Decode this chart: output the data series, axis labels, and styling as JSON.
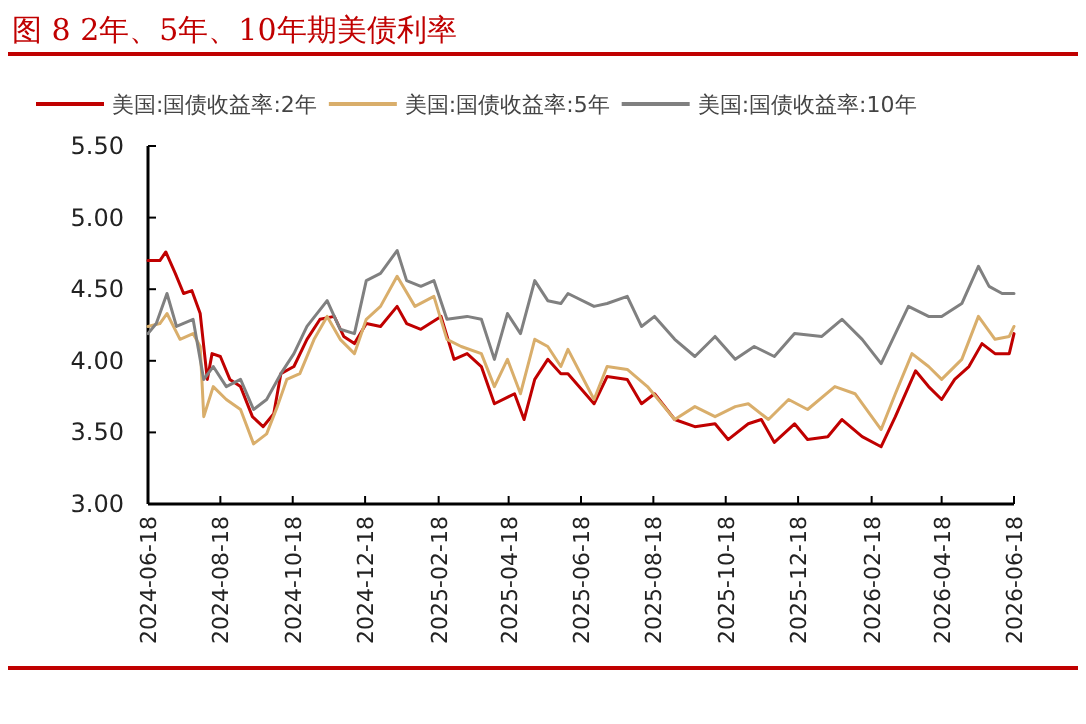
{
  "chart_data": {
    "type": "line",
    "title": "图 8 2年、5年、10年期美债利率",
    "legend": "top",
    "grid": false,
    "line_style": "solid",
    "marker": "none",
    "xlim": [
      "2024-06-18",
      "2026-06-18"
    ],
    "xticks": [
      "2024-06-18",
      "2024-08-18",
      "2024-10-18",
      "2024-12-18",
      "2025-02-18",
      "2025-04-18",
      "2025-06-18",
      "2025-08-18",
      "2025-10-18",
      "2025-12-18",
      "2026-02-18",
      "2026-04-18",
      "2026-06-18"
    ],
    "ylim": [
      3.0,
      5.5
    ],
    "yticks": [
      {
        "value": 3.0,
        "label": "3.00"
      },
      {
        "value": 3.5,
        "label": "3.50"
      },
      {
        "value": 4.0,
        "label": "4.00"
      },
      {
        "value": 4.5,
        "label": "4.50"
      },
      {
        "value": 5.0,
        "label": "5.00"
      },
      {
        "value": 5.5,
        "label": "5.50"
      }
    ],
    "series": [
      {
        "name": "美国:国债收益率:2年",
        "color": "#c00000",
        "x": [
          "2024-06-18",
          "2024-06-28",
          "2024-07-03",
          "2024-07-11",
          "2024-07-18",
          "2024-07-25",
          "2024-08-01",
          "2024-08-07",
          "2024-08-11",
          "2024-08-18",
          "2024-08-26",
          "2024-09-04",
          "2024-09-14",
          "2024-09-23",
          "2024-10-02",
          "2024-10-08",
          "2024-10-19",
          "2024-10-30",
          "2024-11-10",
          "2024-11-22",
          "2024-11-30",
          "2024-12-09",
          "2024-12-19",
          "2024-12-31",
          "2025-01-14",
          "2025-01-22",
          "2025-02-03",
          "2025-02-20",
          "2025-03-03",
          "2025-03-14",
          "2025-03-26",
          "2025-04-06",
          "2025-04-23",
          "2025-05-01",
          "2025-05-10",
          "2025-05-21",
          "2025-06-01",
          "2025-06-07",
          "2025-06-29",
          "2025-07-10",
          "2025-07-27",
          "2025-08-08",
          "2025-08-19",
          "2025-09-05",
          "2025-09-22",
          "2025-10-09",
          "2025-10-20",
          "2025-11-06",
          "2025-11-17",
          "2025-11-28",
          "2025-12-15",
          "2025-12-26",
          "2026-01-12",
          "2026-01-24",
          "2026-02-10",
          "2026-02-26",
          "2026-03-10",
          "2026-03-27",
          "2026-04-07",
          "2026-04-18",
          "2026-04-29",
          "2026-05-11",
          "2026-05-22",
          "2026-06-02",
          "2026-06-14",
          "2026-06-18"
        ],
        "values": [
          4.7,
          4.7,
          4.76,
          4.61,
          4.47,
          4.49,
          4.33,
          3.87,
          4.05,
          4.03,
          3.87,
          3.82,
          3.61,
          3.54,
          3.63,
          3.91,
          3.96,
          4.15,
          4.29,
          4.31,
          4.17,
          4.12,
          4.26,
          4.24,
          4.38,
          4.26,
          4.22,
          4.31,
          4.01,
          4.05,
          3.96,
          3.7,
          3.77,
          3.59,
          3.87,
          4.01,
          3.91,
          3.91,
          3.7,
          3.89,
          3.87,
          3.7,
          3.77,
          3.59,
          3.54,
          3.56,
          3.45,
          3.56,
          3.59,
          3.43,
          3.56,
          3.45,
          3.47,
          3.59,
          3.47,
          3.4,
          3.61,
          3.93,
          3.82,
          3.73,
          3.87,
          3.96,
          4.12,
          4.05,
          4.05,
          4.19
        ]
      },
      {
        "name": "美国:国债收益率:5年",
        "color": "#d9ae6b",
        "x": [
          "2024-06-18",
          "2024-06-28",
          "2024-07-04",
          "2024-07-15",
          "2024-07-26",
          "2024-08-01",
          "2024-08-04",
          "2024-08-12",
          "2024-08-23",
          "2024-09-04",
          "2024-09-15",
          "2024-09-26",
          "2024-10-05",
          "2024-10-13",
          "2024-10-24",
          "2024-11-05",
          "2024-11-16",
          "2024-11-27",
          "2024-12-09",
          "2024-12-19",
          "2024-12-31",
          "2025-01-14",
          "2025-01-29",
          "2025-02-14",
          "2025-02-25",
          "2025-03-09",
          "2025-03-26",
          "2025-04-06",
          "2025-04-17",
          "2025-04-28",
          "2025-05-10",
          "2025-05-21",
          "2025-06-01",
          "2025-06-07",
          "2025-06-29",
          "2025-07-10",
          "2025-07-27",
          "2025-08-13",
          "2025-09-05",
          "2025-09-22",
          "2025-10-09",
          "2025-10-26",
          "2025-11-06",
          "2025-11-23",
          "2025-12-10",
          "2025-12-26",
          "2026-01-18",
          "2026-02-04",
          "2026-02-26",
          "2026-03-10",
          "2026-03-24",
          "2026-04-07",
          "2026-04-18",
          "2026-05-05",
          "2026-05-19",
          "2026-06-02",
          "2026-06-14",
          "2026-06-18"
        ],
        "values": [
          4.24,
          4.26,
          4.33,
          4.15,
          4.19,
          4.1,
          3.61,
          3.82,
          3.73,
          3.66,
          3.42,
          3.49,
          3.68,
          3.87,
          3.91,
          4.15,
          4.31,
          4.15,
          4.05,
          4.29,
          4.38,
          4.59,
          4.38,
          4.45,
          4.15,
          4.1,
          4.05,
          3.82,
          4.01,
          3.77,
          4.15,
          4.1,
          3.96,
          4.08,
          3.73,
          3.96,
          3.94,
          3.82,
          3.59,
          3.68,
          3.61,
          3.68,
          3.7,
          3.59,
          3.73,
          3.66,
          3.82,
          3.77,
          3.52,
          3.77,
          4.05,
          3.96,
          3.87,
          4.01,
          4.31,
          4.15,
          4.17,
          4.24
        ]
      },
      {
        "name": "美国:国债收益率:10年",
        "color": "#808080",
        "x": [
          "2024-06-18",
          "2024-06-25",
          "2024-07-04",
          "2024-07-12",
          "2024-07-26",
          "2024-08-04",
          "2024-08-12",
          "2024-08-23",
          "2024-09-04",
          "2024-09-15",
          "2024-09-26",
          "2024-10-08",
          "2024-10-19",
          "2024-10-30",
          "2024-11-16",
          "2024-11-27",
          "2024-12-09",
          "2024-12-19",
          "2024-12-31",
          "2025-01-14",
          "2025-01-22",
          "2025-02-03",
          "2025-02-14",
          "2025-02-25",
          "2025-03-14",
          "2025-03-26",
          "2025-04-06",
          "2025-04-17",
          "2025-04-28",
          "2025-05-10",
          "2025-05-21",
          "2025-06-01",
          "2025-06-07",
          "2025-06-29",
          "2025-07-10",
          "2025-07-27",
          "2025-08-08",
          "2025-08-19",
          "2025-09-05",
          "2025-09-22",
          "2025-10-09",
          "2025-10-26",
          "2025-11-11",
          "2025-11-28",
          "2025-12-15",
          "2026-01-07",
          "2026-01-24",
          "2026-02-10",
          "2026-02-26",
          "2026-03-10",
          "2026-03-21",
          "2026-04-07",
          "2026-04-18",
          "2026-05-05",
          "2026-05-19",
          "2026-05-28",
          "2026-06-08",
          "2026-06-18"
        ],
        "values": [
          4.19,
          4.26,
          4.47,
          4.24,
          4.29,
          3.87,
          3.96,
          3.82,
          3.87,
          3.66,
          3.73,
          3.91,
          4.05,
          4.24,
          4.42,
          4.22,
          4.19,
          4.56,
          4.61,
          4.77,
          4.56,
          4.52,
          4.56,
          4.29,
          4.31,
          4.29,
          4.01,
          4.33,
          4.19,
          4.56,
          4.42,
          4.4,
          4.47,
          4.38,
          4.4,
          4.45,
          4.24,
          4.31,
          4.15,
          4.03,
          4.17,
          4.01,
          4.1,
          4.03,
          4.19,
          4.17,
          4.29,
          4.15,
          3.98,
          4.19,
          4.38,
          4.31,
          4.31,
          4.4,
          4.66,
          4.52,
          4.47,
          4.47
        ]
      }
    ]
  }
}
